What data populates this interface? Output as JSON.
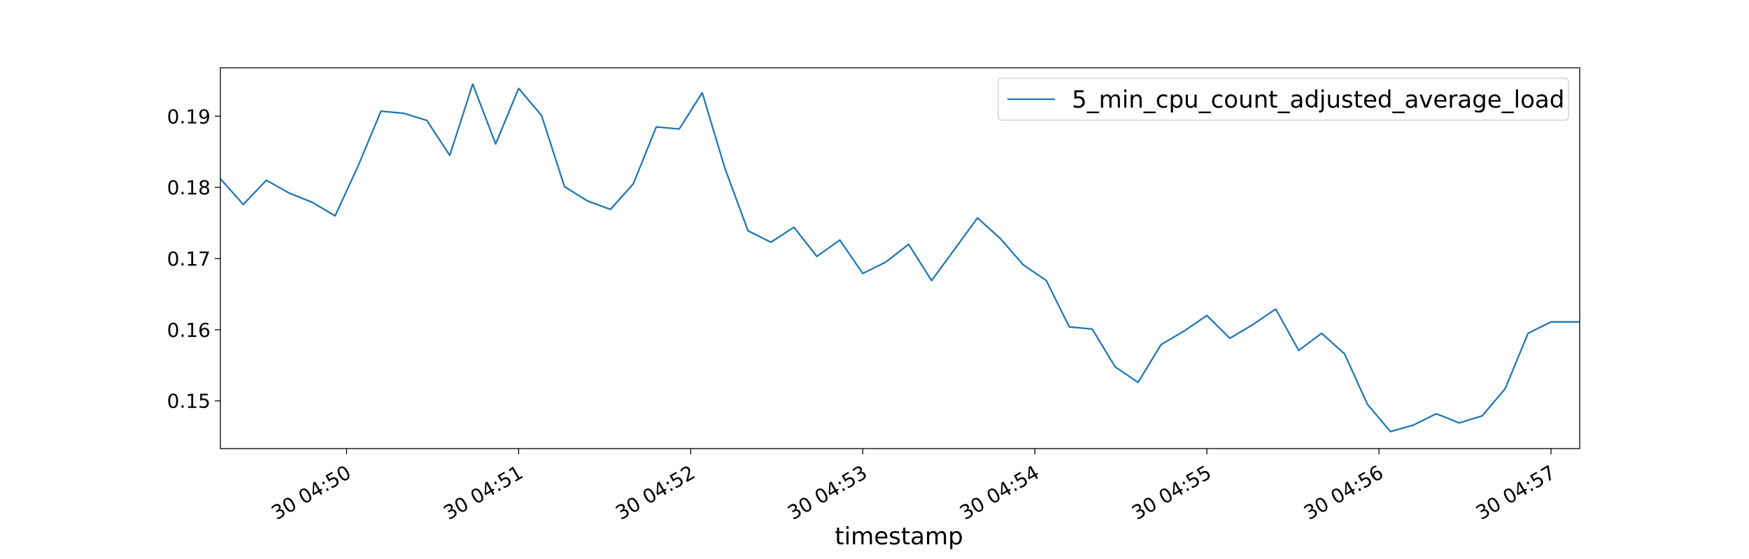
{
  "chart_data": {
    "type": "line",
    "title": "",
    "xlabel": "timestamp",
    "ylabel": "",
    "grid": false,
    "legend": "upper right",
    "x_ticks": [
      "30 04:50",
      "30 04:51",
      "30 04:52",
      "30 04:53",
      "30 04:54",
      "30 04:55",
      "30 04:56",
      "30 04:57"
    ],
    "x_tick_times": [
      "04:50:00",
      "04:51:00",
      "04:52:00",
      "04:53:00",
      "04:54:00",
      "04:55:00",
      "04:56:00",
      "04:57:00"
    ],
    "x_range": [
      "04:49:16",
      "04:57:10"
    ],
    "y_ticks": [
      "0.15",
      "0.16",
      "0.17",
      "0.18",
      "0.19"
    ],
    "ylim": [
      0.1433,
      0.1968
    ],
    "series": [
      {
        "name": "5_min_cpu_count_adjusted_average_load",
        "color": "#1f77b4",
        "x": [
          "04:49:16",
          "04:49:24",
          "04:49:32",
          "04:49:40",
          "04:49:48",
          "04:49:56",
          "04:50:04",
          "04:50:12",
          "04:50:20",
          "04:50:28",
          "04:50:36",
          "04:50:44",
          "04:50:52",
          "04:51:00",
          "04:51:08",
          "04:51:16",
          "04:51:24",
          "04:51:32",
          "04:51:40",
          "04:51:48",
          "04:51:56",
          "04:52:04",
          "04:52:12",
          "04:52:20",
          "04:52:28",
          "04:52:36",
          "04:52:44",
          "04:52:52",
          "04:53:00",
          "04:53:08",
          "04:53:16",
          "04:53:24",
          "04:53:32",
          "04:53:40",
          "04:53:48",
          "04:53:56",
          "04:54:04",
          "04:54:12",
          "04:54:20",
          "04:54:28",
          "04:54:36",
          "04:54:44",
          "04:54:52",
          "04:55:00",
          "04:55:08",
          "04:55:16",
          "04:55:24",
          "04:55:32",
          "04:55:40",
          "04:55:48",
          "04:55:56",
          "04:56:04",
          "04:56:12",
          "04:56:20",
          "04:56:28",
          "04:56:36",
          "04:56:44",
          "04:56:52",
          "04:57:00",
          "04:57:08",
          "04:57:10"
        ],
        "values": [
          0.1812,
          0.1776,
          0.181,
          0.1792,
          0.1779,
          0.176,
          0.183,
          0.1907,
          0.1904,
          0.1894,
          0.1845,
          0.1945,
          0.1861,
          0.1939,
          0.1901,
          0.1801,
          0.1781,
          0.1769,
          0.1805,
          0.1885,
          0.1882,
          0.1933,
          0.1826,
          0.1739,
          0.1723,
          0.1744,
          0.1703,
          0.1726,
          0.1679,
          0.1695,
          0.172,
          0.1669,
          0.1713,
          0.1757,
          0.1728,
          0.1691,
          0.1669,
          0.1604,
          0.1601,
          0.1548,
          0.1526,
          0.1579,
          0.1598,
          0.162,
          0.1588,
          0.1607,
          0.1629,
          0.1571,
          0.1595,
          0.1566,
          0.1495,
          0.1457,
          0.1466,
          0.1482,
          0.1469,
          0.1479,
          0.1517,
          0.1595,
          0.1611,
          0.1611,
          0.1611
        ]
      }
    ]
  }
}
